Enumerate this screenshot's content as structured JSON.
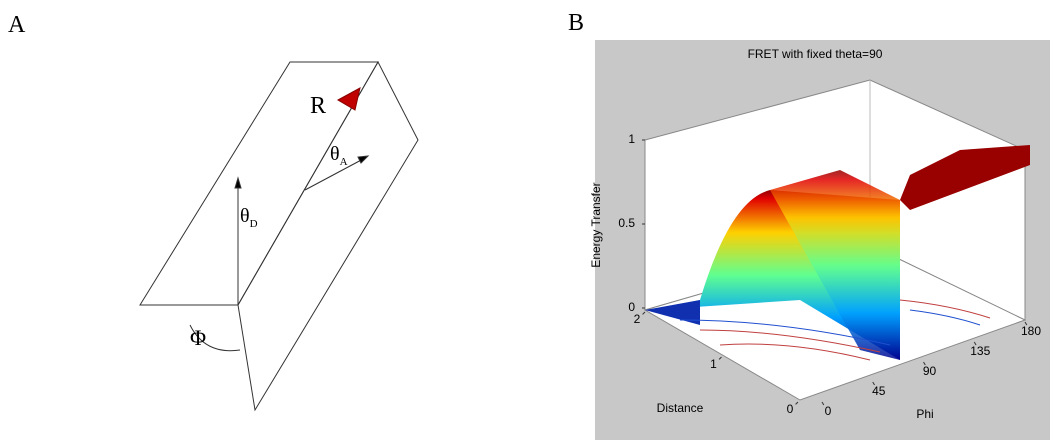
{
  "panel_a": {
    "label": "A",
    "reporter": "R",
    "acceptor": {
      "symbol": "θ",
      "subscript": "A"
    },
    "donor": {
      "symbol": "θ",
      "subscript": "D"
    },
    "angle": "Φ"
  },
  "panel_b": {
    "label": "B",
    "title": "FRET with fixed theta=90",
    "z_axis": {
      "label": "Energy Transfer",
      "ticks": [
        0,
        0.5,
        1
      ]
    },
    "x_axis": {
      "label": "Distance",
      "ticks": [
        0,
        1,
        2
      ]
    },
    "y_axis": {
      "label": "Phi",
      "ticks": [
        0,
        45,
        90,
        135,
        180
      ]
    }
  }
}
